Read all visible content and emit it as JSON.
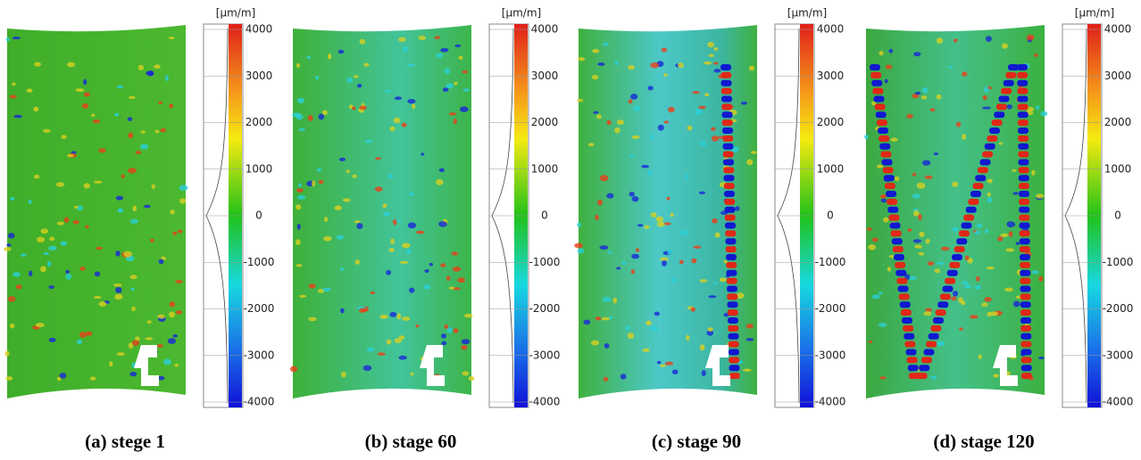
{
  "panels": [
    {
      "caption": "(a) stege 1",
      "unit": "[µm/m]",
      "ticks": [
        4000,
        3000,
        2000,
        1000,
        0,
        -1000,
        -2000,
        -3000,
        -4000
      ]
    },
    {
      "caption": "(b) stage 60",
      "unit": "[µm/m]",
      "ticks": [
        4000,
        3000,
        2000,
        1000,
        0,
        -1000,
        -2000,
        -3000,
        -4000
      ]
    },
    {
      "caption": "(c) stage 90",
      "unit": "[µm/m]",
      "ticks": [
        4000,
        3000,
        2000,
        1000,
        0,
        -1000,
        -2000,
        -3000,
        -4000
      ]
    },
    {
      "caption": "(d) stage 120",
      "unit": "[µm/m]",
      "ticks": [
        4000,
        3000,
        2000,
        1000,
        0,
        -1000,
        -2000,
        -3000,
        -4000
      ]
    }
  ]
}
